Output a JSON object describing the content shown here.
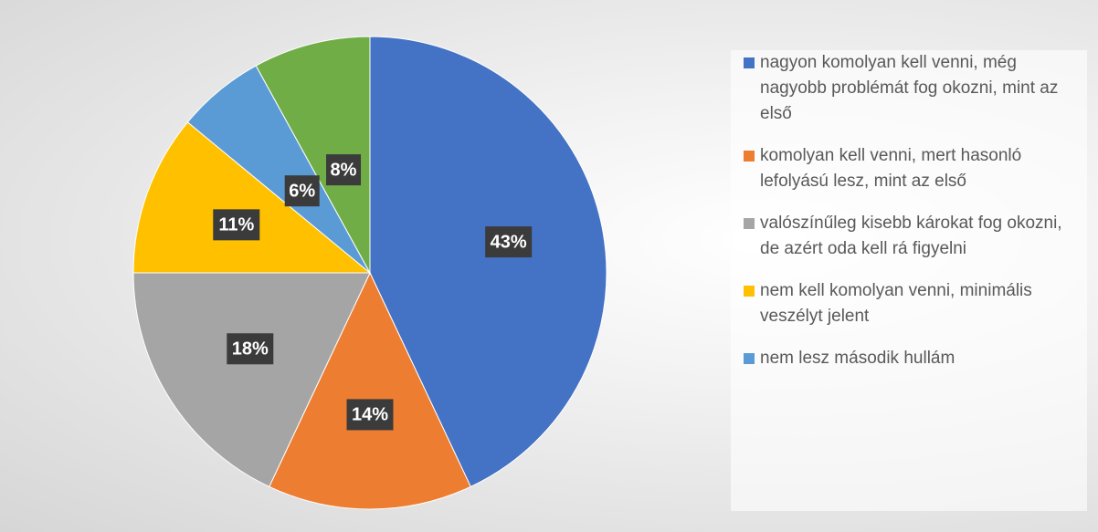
{
  "chart_data": {
    "type": "pie",
    "categories": [
      "nagyon komolyan kell venni, még nagyobb problémát fog okozni, mint az első",
      "komolyan kell venni, mert hasonló lefolyású lesz, mint az első",
      "valószínűleg kisebb károkat fog okozni, de azért oda kell rá figyelni",
      "nem kell komolyan venni, minimális veszélyt jelent",
      "nem lesz második hullám",
      null
    ],
    "values": [
      43,
      14,
      18,
      11,
      6,
      8
    ],
    "value_labels": [
      "43%",
      "14%",
      "18%",
      "11%",
      "6%",
      "8%"
    ],
    "colors": [
      "#4472c4",
      "#ed7d31",
      "#a5a5a5",
      "#ffc000",
      "#5b9bd5",
      "#70ad47"
    ],
    "legend": "right"
  }
}
